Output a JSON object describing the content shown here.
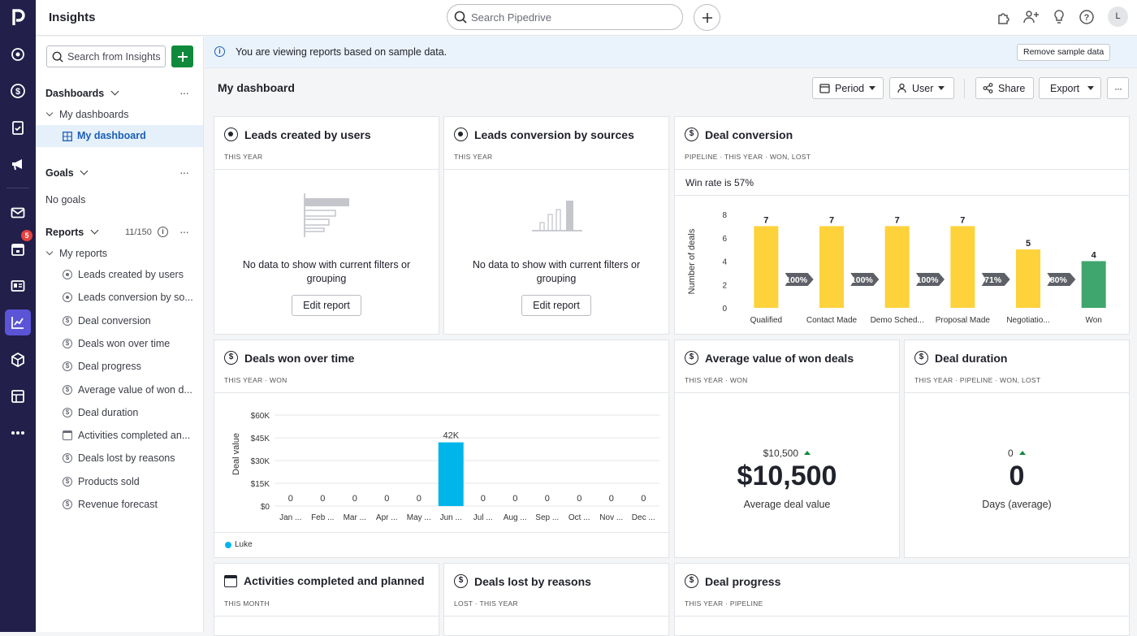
{
  "app": {
    "title": "Insights",
    "search_placeholder": "Search Pipedrive",
    "avatar_initial": "L",
    "notification_count": "5"
  },
  "sidebar": {
    "search_placeholder": "Search from Insights",
    "dashboards_label": "Dashboards",
    "my_dashboards_label": "My dashboards",
    "my_dashboard_label": "My dashboard",
    "goals_label": "Goals",
    "no_goals_label": "No goals",
    "reports_label": "Reports",
    "reports_count": "11/150",
    "my_reports_label": "My reports",
    "reports": [
      {
        "label": "Leads created by users",
        "icon": "target-icon"
      },
      {
        "label": "Leads conversion by so...",
        "icon": "target-icon"
      },
      {
        "label": "Deal conversion",
        "icon": "dollar-icon"
      },
      {
        "label": "Deals won over time",
        "icon": "dollar-icon"
      },
      {
        "label": "Deal progress",
        "icon": "dollar-icon"
      },
      {
        "label": "Average value of won d...",
        "icon": "dollar-icon"
      },
      {
        "label": "Deal duration",
        "icon": "dollar-icon"
      },
      {
        "label": "Activities completed an...",
        "icon": "calendar-icon"
      },
      {
        "label": "Deals lost by reasons",
        "icon": "dollar-icon"
      },
      {
        "label": "Products sold",
        "icon": "dollar-icon"
      },
      {
        "label": "Revenue forecast",
        "icon": "forecast-icon"
      }
    ]
  },
  "banner": {
    "text": "You are viewing reports based on sample data.",
    "button": "Remove sample data"
  },
  "dashboard": {
    "title": "My dashboard",
    "period": "Period",
    "user": "User",
    "share": "Share",
    "export": "Export"
  },
  "cards": {
    "leads_created": {
      "title": "Leads created by users",
      "sub": "THIS YEAR",
      "nodata": "No data to show with current filters or grouping",
      "edit": "Edit report"
    },
    "leads_conversion": {
      "title": "Leads conversion by sources",
      "sub": "THIS YEAR",
      "nodata": "No data to show with current filters or grouping",
      "edit": "Edit report"
    },
    "deal_conversion": {
      "title": "Deal conversion",
      "sub": "PIPELINE  ·  THIS YEAR  ·  WON, LOST",
      "win_rate": "Win rate is 57%",
      "ylabel": "Number of deals"
    },
    "deals_won": {
      "title": "Deals won over time",
      "sub": "THIS YEAR  ·  WON",
      "ylabel": "Deal value",
      "legend": "Luke"
    },
    "avg_value": {
      "title": "Average value of won deals",
      "sub": "THIS YEAR  ·  WON",
      "small": "$10,500",
      "big": "$10,500",
      "caption": "Average deal value"
    },
    "duration": {
      "title": "Deal duration",
      "sub": "THIS YEAR  ·  PIPELINE  ·  WON, LOST",
      "small": "0",
      "big": "0",
      "caption": "Days (average)"
    },
    "activities": {
      "title": "Activities completed and planned",
      "sub": "THIS MONTH"
    },
    "deals_lost": {
      "title": "Deals lost by reasons",
      "sub": "LOST  ·  THIS YEAR"
    },
    "deal_progress": {
      "title": "Deal progress",
      "sub": "THIS YEAR  ·  PIPELINE"
    }
  },
  "chart_data": [
    {
      "type": "bar",
      "title": "Deal conversion",
      "ylabel": "Number of deals",
      "categories": [
        "Qualified",
        "Contact Made",
        "Demo Sched...",
        "Proposal Made",
        "Negotiatio...",
        "Won"
      ],
      "values": [
        7,
        7,
        7,
        7,
        5,
        4
      ],
      "conversion_labels": [
        "100%",
        "100%",
        "100%",
        "71%",
        "80%"
      ],
      "yticks": [
        "0",
        "2",
        "4",
        "6",
        "8"
      ],
      "ylim": [
        0,
        8
      ],
      "colors": {
        "stage": "#fdd23b",
        "won": "#3fa66e"
      }
    },
    {
      "type": "bar",
      "title": "Deals won over time",
      "ylabel": "Deal value",
      "categories": [
        "Jan ...",
        "Feb ...",
        "Mar ...",
        "Apr ...",
        "May ...",
        "Jun ...",
        "Jul ...",
        "Aug ...",
        "Sep ...",
        "Oct ...",
        "Nov ...",
        "Dec ..."
      ],
      "values": [
        0,
        0,
        0,
        0,
        0,
        42000,
        0,
        0,
        0,
        0,
        0,
        0
      ],
      "value_labels": [
        "0",
        "0",
        "0",
        "0",
        "0",
        "42K",
        "0",
        "0",
        "0",
        "0",
        "0",
        "0"
      ],
      "yticks": [
        "$0",
        "$15K",
        "$30K",
        "$45K",
        "$60K"
      ],
      "ylim": [
        0,
        60000
      ],
      "series": [
        {
          "name": "Luke",
          "color": "#00b5ea"
        }
      ]
    }
  ]
}
